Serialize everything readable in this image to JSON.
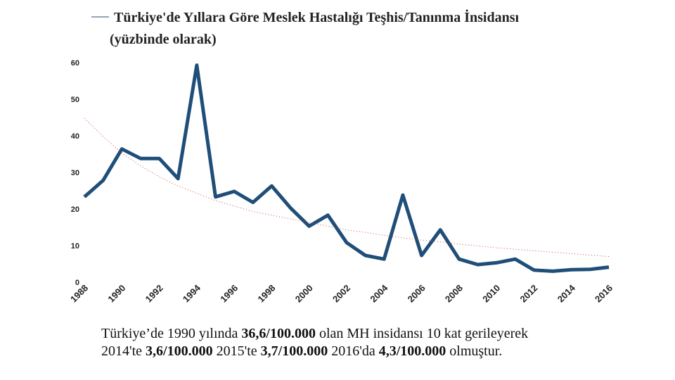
{
  "chart_data": {
    "type": "line",
    "title": "Türkiye'de Yıllara Göre Meslek Hastalığı Teşhis/Tanınma İnsidansı",
    "subtitle": "(yüzbinde olarak)",
    "x": [
      1988,
      1989,
      1990,
      1991,
      1992,
      1993,
      1994,
      1995,
      1996,
      1997,
      1998,
      1999,
      2000,
      2001,
      2002,
      2003,
      2004,
      2005,
      2006,
      2007,
      2008,
      2009,
      2010,
      2011,
      2012,
      2013,
      2014,
      2015,
      2016
    ],
    "series": [
      {
        "color": "#1f4e79",
        "values": [
          23.5,
          28,
          36.6,
          34,
          34,
          28.5,
          59.5,
          23.5,
          25,
          22,
          26.5,
          20.5,
          15.5,
          18.5,
          11,
          7.5,
          6.5,
          24,
          7.5,
          14.5,
          6.5,
          5,
          5.5,
          6.5,
          3.5,
          3.2,
          3.6,
          3.7,
          4.3
        ]
      },
      {
        "color": "#c0504d",
        "style": "dotted",
        "values": [
          45,
          40,
          35.5,
          32,
          29,
          26.5,
          24.5,
          22.5,
          21,
          19.5,
          18.5,
          17.5,
          16.5,
          15.5,
          14.5,
          13.8,
          13,
          12.3,
          11.7,
          11.2,
          10.6,
          10.1,
          9.6,
          9.2,
          8.8,
          8.4,
          8,
          7.6,
          7.2
        ]
      }
    ],
    "xlim": [
      1988,
      2016
    ],
    "xticks": [
      1988,
      1990,
      1992,
      1994,
      1996,
      1998,
      2000,
      2002,
      2004,
      2006,
      2008,
      2010,
      2012,
      2014,
      2016
    ],
    "ylim": [
      0,
      60
    ],
    "yticks": [
      0,
      10,
      20,
      30,
      40,
      50,
      60
    ],
    "grid": false
  },
  "caption": [
    [
      "Türkiye’de 1990 yılında ",
      "36,6/100.000",
      " olan MH insidansı 10 kat gerileyerek"
    ],
    [
      "2014'te ",
      "3,6/100.000",
      " 2015'te ",
      "3,7/100.000",
      " 2016'da ",
      "4,3/100.000",
      " olmuştur."
    ]
  ]
}
